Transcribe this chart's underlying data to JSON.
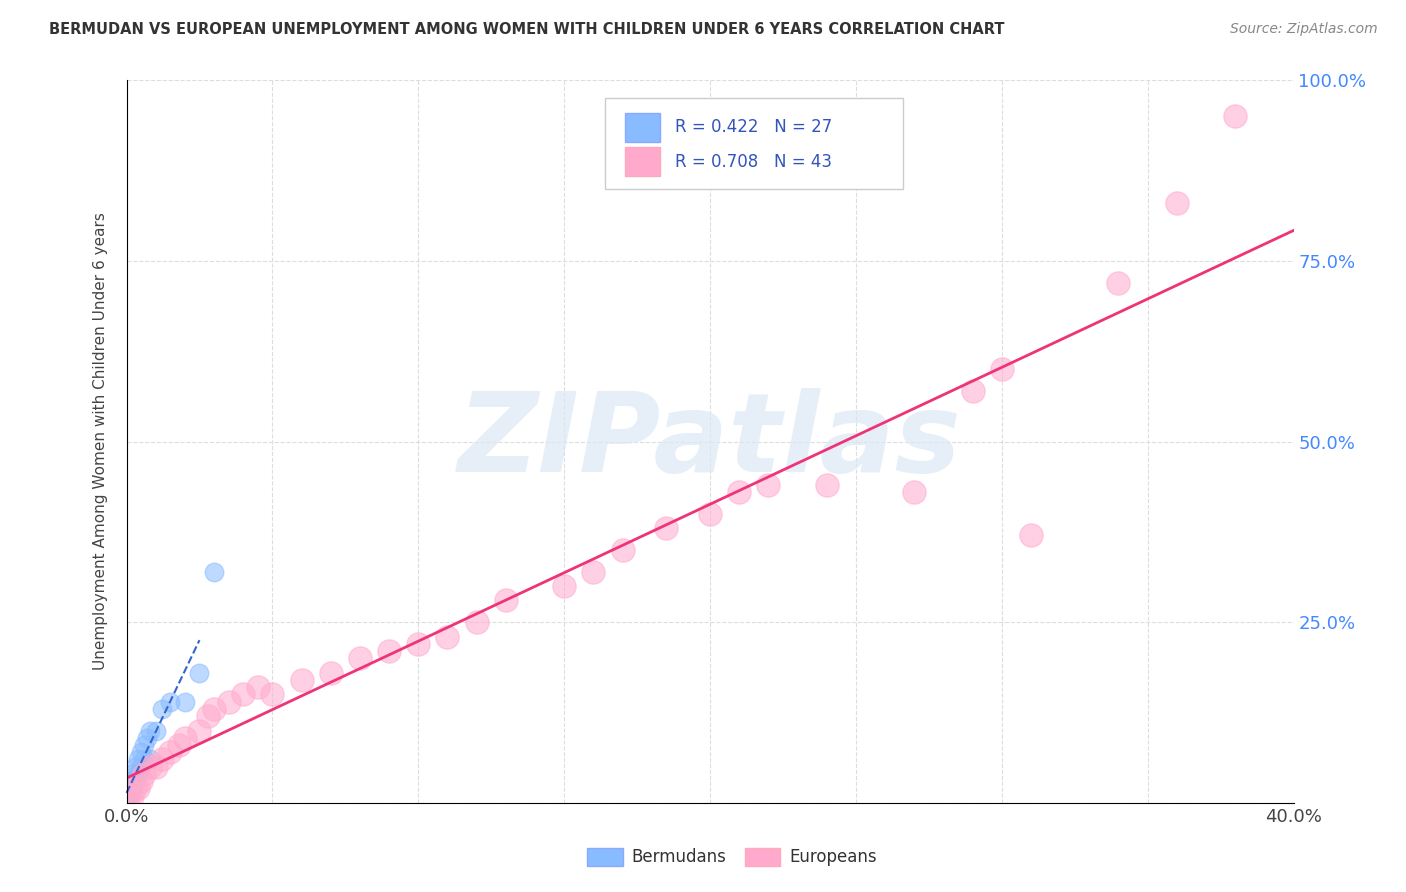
{
  "title": "BERMUDAN VS EUROPEAN UNEMPLOYMENT AMONG WOMEN WITH CHILDREN UNDER 6 YEARS CORRELATION CHART",
  "source": "Source: ZipAtlas.com",
  "ylabel": "Unemployment Among Women with Children Under 6 years",
  "xlim": [
    0.0,
    0.4
  ],
  "ylim": [
    0.0,
    1.0
  ],
  "bermudans_R": 0.422,
  "bermudans_N": 27,
  "europeans_R": 0.708,
  "europeans_N": 43,
  "bermudans_color": "#88bbff",
  "europeans_color": "#ffaacc",
  "bermudans_edge_color": "#88aaff",
  "europeans_edge_color": "#ffaabb",
  "bermudans_trend_color": "#3366cc",
  "europeans_trend_color": "#ee3377",
  "legend_text_color": "#3355bb",
  "watermark": "ZIPatlas",
  "background_color": "#ffffff",
  "grid_color": "#cccccc",
  "bermudans_x": [
    0.0,
    0.0,
    0.0,
    0.001,
    0.001,
    0.001,
    0.001,
    0.002,
    0.002,
    0.002,
    0.003,
    0.003,
    0.004,
    0.004,
    0.005,
    0.005,
    0.006,
    0.006,
    0.007,
    0.008,
    0.008,
    0.01,
    0.012,
    0.015,
    0.02,
    0.025,
    0.03
  ],
  "bermudans_y": [
    0.01,
    0.01,
    0.01,
    0.01,
    0.02,
    0.02,
    0.03,
    0.02,
    0.03,
    0.04,
    0.03,
    0.05,
    0.04,
    0.06,
    0.05,
    0.07,
    0.06,
    0.08,
    0.09,
    0.06,
    0.1,
    0.1,
    0.13,
    0.14,
    0.14,
    0.18,
    0.32
  ],
  "europeans_x": [
    0.0,
    0.001,
    0.002,
    0.003,
    0.004,
    0.005,
    0.006,
    0.008,
    0.01,
    0.012,
    0.015,
    0.018,
    0.02,
    0.025,
    0.028,
    0.03,
    0.035,
    0.04,
    0.045,
    0.05,
    0.06,
    0.07,
    0.08,
    0.09,
    0.1,
    0.11,
    0.12,
    0.13,
    0.15,
    0.16,
    0.17,
    0.185,
    0.2,
    0.21,
    0.22,
    0.24,
    0.27,
    0.29,
    0.3,
    0.31,
    0.34,
    0.36,
    0.38
  ],
  "europeans_y": [
    0.01,
    0.01,
    0.01,
    0.02,
    0.02,
    0.03,
    0.04,
    0.05,
    0.05,
    0.06,
    0.07,
    0.08,
    0.09,
    0.1,
    0.12,
    0.13,
    0.14,
    0.15,
    0.16,
    0.15,
    0.17,
    0.18,
    0.2,
    0.21,
    0.22,
    0.23,
    0.25,
    0.28,
    0.3,
    0.32,
    0.35,
    0.38,
    0.4,
    0.43,
    0.44,
    0.44,
    0.43,
    0.57,
    0.6,
    0.37,
    0.72,
    0.83,
    0.95
  ]
}
